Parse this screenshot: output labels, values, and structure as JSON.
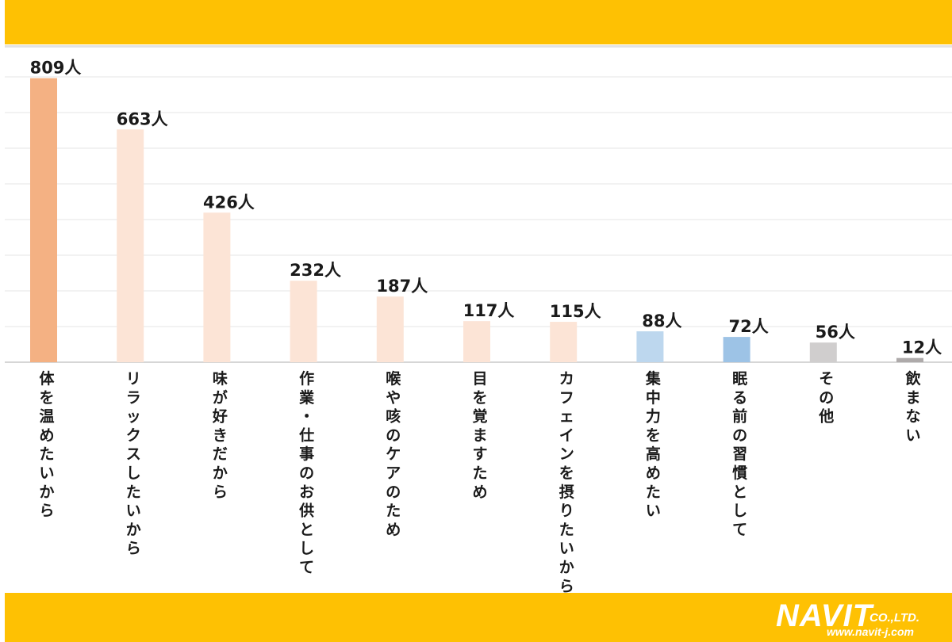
{
  "chart_data": {
    "type": "bar",
    "categories": [
      "体を温めたいから",
      "リラックスしたいから",
      "味が好きだから",
      "作業・仕事のお供として",
      "喉や咳のケアのため",
      "目を覚ますため",
      "カフェインを摂りたいから",
      "集中力を高めたい",
      "眠る前の習慣として",
      "その他",
      "飲まない"
    ],
    "values": [
      809,
      663,
      426,
      232,
      187,
      117,
      115,
      88,
      72,
      56,
      12
    ],
    "value_labels": [
      "809人",
      "663人",
      "426人",
      "232人",
      "187人",
      "117人",
      "115人",
      "88人",
      "72人",
      "56人",
      "12人"
    ],
    "bar_colors": [
      "#F4B183",
      "#FCE4D6",
      "#FCE4D6",
      "#FCE4D6",
      "#FCE4D6",
      "#FCE4D6",
      "#FCE4D6",
      "#BDD7EE",
      "#9DC3E6",
      "#D0CECE",
      "#AEAAAA"
    ],
    "title": "",
    "xlabel": "",
    "ylabel": "",
    "ylim": [
      0,
      810
    ],
    "grid": true,
    "legend": "none"
  },
  "brand": {
    "logo_main": "NAVIT",
    "logo_suffix": "CO.,LTD.",
    "logo_url": "www.navit-j.com",
    "bar_color": "#FEC103"
  }
}
